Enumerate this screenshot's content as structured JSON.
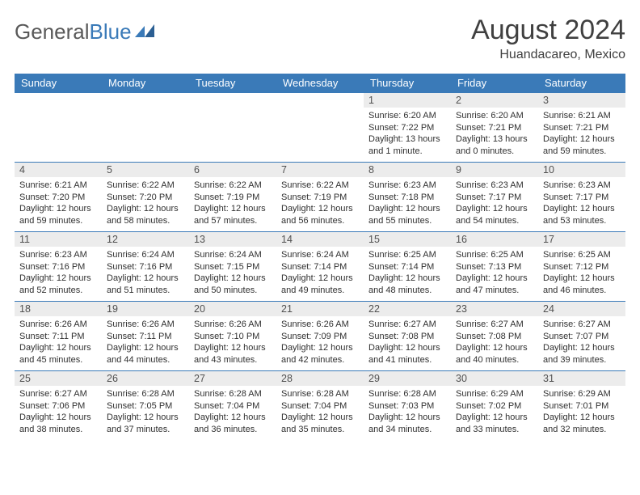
{
  "logo": {
    "text_gray": "General",
    "text_blue": "Blue"
  },
  "title": "August 2024",
  "subtitle": "Huandacareo, Mexico",
  "colors": {
    "header_bg": "#3a7ab8",
    "header_fg": "#ffffff",
    "daynum_bg": "#ececec",
    "row_border": "#3a7ab8",
    "text": "#303030",
    "title_color": "#404040"
  },
  "day_headers": [
    "Sunday",
    "Monday",
    "Tuesday",
    "Wednesday",
    "Thursday",
    "Friday",
    "Saturday"
  ],
  "weeks": [
    [
      {
        "n": "",
        "sr": "",
        "ss": "",
        "dl": ""
      },
      {
        "n": "",
        "sr": "",
        "ss": "",
        "dl": ""
      },
      {
        "n": "",
        "sr": "",
        "ss": "",
        "dl": ""
      },
      {
        "n": "",
        "sr": "",
        "ss": "",
        "dl": ""
      },
      {
        "n": "1",
        "sr": "Sunrise: 6:20 AM",
        "ss": "Sunset: 7:22 PM",
        "dl": "Daylight: 13 hours and 1 minute."
      },
      {
        "n": "2",
        "sr": "Sunrise: 6:20 AM",
        "ss": "Sunset: 7:21 PM",
        "dl": "Daylight: 13 hours and 0 minutes."
      },
      {
        "n": "3",
        "sr": "Sunrise: 6:21 AM",
        "ss": "Sunset: 7:21 PM",
        "dl": "Daylight: 12 hours and 59 minutes."
      }
    ],
    [
      {
        "n": "4",
        "sr": "Sunrise: 6:21 AM",
        "ss": "Sunset: 7:20 PM",
        "dl": "Daylight: 12 hours and 59 minutes."
      },
      {
        "n": "5",
        "sr": "Sunrise: 6:22 AM",
        "ss": "Sunset: 7:20 PM",
        "dl": "Daylight: 12 hours and 58 minutes."
      },
      {
        "n": "6",
        "sr": "Sunrise: 6:22 AM",
        "ss": "Sunset: 7:19 PM",
        "dl": "Daylight: 12 hours and 57 minutes."
      },
      {
        "n": "7",
        "sr": "Sunrise: 6:22 AM",
        "ss": "Sunset: 7:19 PM",
        "dl": "Daylight: 12 hours and 56 minutes."
      },
      {
        "n": "8",
        "sr": "Sunrise: 6:23 AM",
        "ss": "Sunset: 7:18 PM",
        "dl": "Daylight: 12 hours and 55 minutes."
      },
      {
        "n": "9",
        "sr": "Sunrise: 6:23 AM",
        "ss": "Sunset: 7:17 PM",
        "dl": "Daylight: 12 hours and 54 minutes."
      },
      {
        "n": "10",
        "sr": "Sunrise: 6:23 AM",
        "ss": "Sunset: 7:17 PM",
        "dl": "Daylight: 12 hours and 53 minutes."
      }
    ],
    [
      {
        "n": "11",
        "sr": "Sunrise: 6:23 AM",
        "ss": "Sunset: 7:16 PM",
        "dl": "Daylight: 12 hours and 52 minutes."
      },
      {
        "n": "12",
        "sr": "Sunrise: 6:24 AM",
        "ss": "Sunset: 7:16 PM",
        "dl": "Daylight: 12 hours and 51 minutes."
      },
      {
        "n": "13",
        "sr": "Sunrise: 6:24 AM",
        "ss": "Sunset: 7:15 PM",
        "dl": "Daylight: 12 hours and 50 minutes."
      },
      {
        "n": "14",
        "sr": "Sunrise: 6:24 AM",
        "ss": "Sunset: 7:14 PM",
        "dl": "Daylight: 12 hours and 49 minutes."
      },
      {
        "n": "15",
        "sr": "Sunrise: 6:25 AM",
        "ss": "Sunset: 7:14 PM",
        "dl": "Daylight: 12 hours and 48 minutes."
      },
      {
        "n": "16",
        "sr": "Sunrise: 6:25 AM",
        "ss": "Sunset: 7:13 PM",
        "dl": "Daylight: 12 hours and 47 minutes."
      },
      {
        "n": "17",
        "sr": "Sunrise: 6:25 AM",
        "ss": "Sunset: 7:12 PM",
        "dl": "Daylight: 12 hours and 46 minutes."
      }
    ],
    [
      {
        "n": "18",
        "sr": "Sunrise: 6:26 AM",
        "ss": "Sunset: 7:11 PM",
        "dl": "Daylight: 12 hours and 45 minutes."
      },
      {
        "n": "19",
        "sr": "Sunrise: 6:26 AM",
        "ss": "Sunset: 7:11 PM",
        "dl": "Daylight: 12 hours and 44 minutes."
      },
      {
        "n": "20",
        "sr": "Sunrise: 6:26 AM",
        "ss": "Sunset: 7:10 PM",
        "dl": "Daylight: 12 hours and 43 minutes."
      },
      {
        "n": "21",
        "sr": "Sunrise: 6:26 AM",
        "ss": "Sunset: 7:09 PM",
        "dl": "Daylight: 12 hours and 42 minutes."
      },
      {
        "n": "22",
        "sr": "Sunrise: 6:27 AM",
        "ss": "Sunset: 7:08 PM",
        "dl": "Daylight: 12 hours and 41 minutes."
      },
      {
        "n": "23",
        "sr": "Sunrise: 6:27 AM",
        "ss": "Sunset: 7:08 PM",
        "dl": "Daylight: 12 hours and 40 minutes."
      },
      {
        "n": "24",
        "sr": "Sunrise: 6:27 AM",
        "ss": "Sunset: 7:07 PM",
        "dl": "Daylight: 12 hours and 39 minutes."
      }
    ],
    [
      {
        "n": "25",
        "sr": "Sunrise: 6:27 AM",
        "ss": "Sunset: 7:06 PM",
        "dl": "Daylight: 12 hours and 38 minutes."
      },
      {
        "n": "26",
        "sr": "Sunrise: 6:28 AM",
        "ss": "Sunset: 7:05 PM",
        "dl": "Daylight: 12 hours and 37 minutes."
      },
      {
        "n": "27",
        "sr": "Sunrise: 6:28 AM",
        "ss": "Sunset: 7:04 PM",
        "dl": "Daylight: 12 hours and 36 minutes."
      },
      {
        "n": "28",
        "sr": "Sunrise: 6:28 AM",
        "ss": "Sunset: 7:04 PM",
        "dl": "Daylight: 12 hours and 35 minutes."
      },
      {
        "n": "29",
        "sr": "Sunrise: 6:28 AM",
        "ss": "Sunset: 7:03 PM",
        "dl": "Daylight: 12 hours and 34 minutes."
      },
      {
        "n": "30",
        "sr": "Sunrise: 6:29 AM",
        "ss": "Sunset: 7:02 PM",
        "dl": "Daylight: 12 hours and 33 minutes."
      },
      {
        "n": "31",
        "sr": "Sunrise: 6:29 AM",
        "ss": "Sunset: 7:01 PM",
        "dl": "Daylight: 12 hours and 32 minutes."
      }
    ]
  ]
}
